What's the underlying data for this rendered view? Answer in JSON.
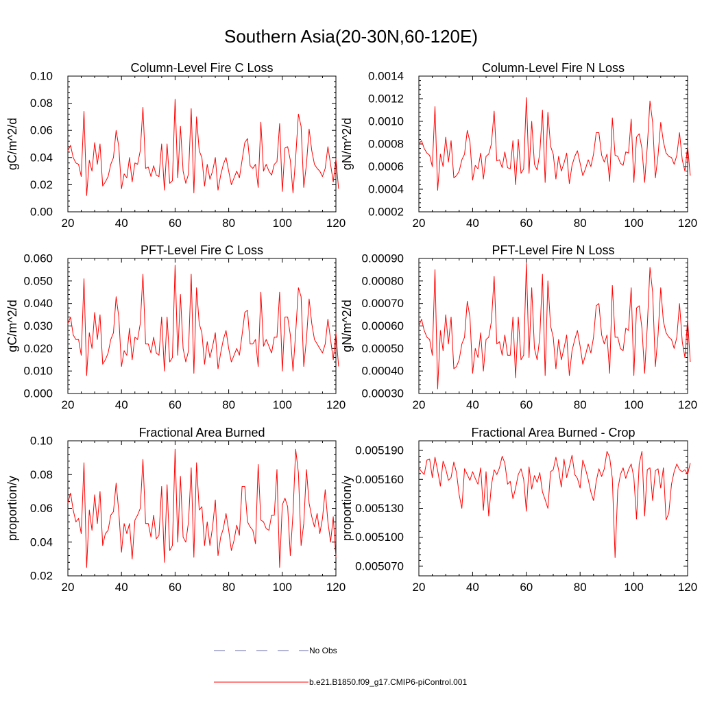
{
  "page": {
    "title": "Southern Asia(20-30N,60-120E)"
  },
  "colors": {
    "series_red": "#ff0000",
    "no_obs_blue": "#6a6aa8",
    "axis": "#000000",
    "background": "#ffffff"
  },
  "legend": {
    "entries": [
      {
        "label": "No Obs",
        "style": "dashed",
        "color": "#6a6aa8"
      },
      {
        "label": "b.e21.B1850.f09_g17.CMIP6-piControl.001",
        "style": "solid",
        "color": "#ff0000"
      }
    ]
  },
  "chart_data": [
    {
      "type": "line",
      "title": "Column-Level Fire C Loss",
      "ylabel": "gC/m^2/d",
      "xlim": [
        20,
        120
      ],
      "ylim": [
        0.0,
        0.1
      ],
      "xticks": [
        20,
        40,
        60,
        80,
        100,
        120
      ],
      "xtick_labels": [
        "20",
        "40",
        "60",
        "80",
        "100",
        "120"
      ],
      "yticks": [
        0.0,
        0.02,
        0.04,
        0.06,
        0.08,
        0.1
      ],
      "ytick_labels": [
        "0.00",
        "0.02",
        "0.04",
        "0.06",
        "0.08",
        "0.10"
      ],
      "x_start": 20,
      "series": [
        {
          "name": "b.e21.B1850.f09_g17.CMIP6-piControl.001",
          "values": [
            0.045,
            0.049,
            0.04,
            0.036,
            0.035,
            0.026,
            0.074,
            0.012,
            0.038,
            0.03,
            0.051,
            0.035,
            0.05,
            0.019,
            0.022,
            0.026,
            0.035,
            0.04,
            0.06,
            0.048,
            0.017,
            0.028,
            0.025,
            0.04,
            0.022,
            0.036,
            0.035,
            0.045,
            0.077,
            0.032,
            0.033,
            0.026,
            0.034,
            0.027,
            0.026,
            0.05,
            0.016,
            0.05,
            0.021,
            0.023,
            0.083,
            0.025,
            0.063,
            0.03,
            0.021,
            0.028,
            0.076,
            0.014,
            0.07,
            0.045,
            0.04,
            0.019,
            0.035,
            0.024,
            0.03,
            0.04,
            0.016,
            0.027,
            0.035,
            0.04,
            0.03,
            0.02,
            0.025,
            0.03,
            0.025,
            0.038,
            0.051,
            0.054,
            0.034,
            0.032,
            0.035,
            0.018,
            0.066,
            0.03,
            0.035,
            0.03,
            0.027,
            0.035,
            0.037,
            0.065,
            0.015,
            0.047,
            0.048,
            0.038,
            0.014,
            0.04,
            0.072,
            0.063,
            0.018,
            0.035,
            0.061,
            0.045,
            0.035,
            0.032,
            0.03,
            0.026,
            0.032,
            0.048,
            0.035,
            0.022,
            0.039,
            0.017
          ]
        }
      ]
    },
    {
      "type": "line",
      "title": "Column-Level Fire N Loss",
      "ylabel": "gN/m^2/d",
      "xlim": [
        20,
        120
      ],
      "ylim": [
        0.0002,
        0.0014
      ],
      "xticks": [
        20,
        40,
        60,
        80,
        100,
        120
      ],
      "xtick_labels": [
        "20",
        "40",
        "60",
        "80",
        "100",
        "120"
      ],
      "yticks": [
        0.0002,
        0.0004,
        0.0006,
        0.0008,
        0.001,
        0.0012,
        0.0014
      ],
      "ytick_labels": [
        "0.0002",
        "0.0004",
        "0.0006",
        "0.0008",
        "0.0010",
        "0.0012",
        "0.0014"
      ],
      "x_start": 20,
      "series": [
        {
          "name": "b.e21.B1850.f09_g17.CMIP6-piControl.001",
          "values": [
            0.0008,
            0.00083,
            0.00076,
            0.00072,
            0.0007,
            0.0006,
            0.00113,
            0.00039,
            0.00071,
            0.0006,
            0.00086,
            0.00064,
            0.00083,
            0.0005,
            0.00052,
            0.00056,
            0.00066,
            0.00071,
            0.00092,
            0.00082,
            0.00048,
            0.00061,
            0.00058,
            0.00072,
            0.00049,
            0.00069,
            0.00071,
            0.0008,
            0.00109,
            0.00065,
            0.00066,
            0.00059,
            0.00073,
            0.00059,
            0.00058,
            0.00083,
            0.00044,
            0.00084,
            0.00054,
            0.00058,
            0.00121,
            0.00054,
            0.001,
            0.00062,
            0.00057,
            0.00072,
            0.0011,
            0.00046,
            0.00108,
            0.00078,
            0.00071,
            0.00049,
            0.00069,
            0.00056,
            0.00063,
            0.00072,
            0.00045,
            0.00061,
            0.00069,
            0.00074,
            0.00063,
            0.00052,
            0.00058,
            0.00066,
            0.0006,
            0.00071,
            0.0009,
            0.0009,
            0.0007,
            0.00064,
            0.00071,
            0.00047,
            0.00103,
            0.0007,
            0.00069,
            0.00063,
            0.00061,
            0.00073,
            0.00072,
            0.00102,
            0.00046,
            0.00086,
            0.00089,
            0.00076,
            0.00046,
            0.00078,
            0.00118,
            0.00099,
            0.0005,
            0.0007,
            0.00099,
            0.00082,
            0.00072,
            0.00069,
            0.00068,
            0.00062,
            0.0007,
            0.0009,
            0.00066,
            0.00056,
            0.00078,
            0.00052
          ]
        }
      ]
    },
    {
      "type": "line",
      "title": "PFT-Level Fire C Loss",
      "ylabel": "gC/m^2/d",
      "xlim": [
        20,
        120
      ],
      "ylim": [
        0.0,
        0.06
      ],
      "xticks": [
        20,
        40,
        60,
        80,
        100,
        120
      ],
      "xtick_labels": [
        "20",
        "40",
        "60",
        "80",
        "100",
        "120"
      ],
      "yticks": [
        0.0,
        0.01,
        0.02,
        0.03,
        0.04,
        0.05,
        0.06
      ],
      "ytick_labels": [
        "0.000",
        "0.010",
        "0.020",
        "0.030",
        "0.040",
        "0.050",
        "0.060"
      ],
      "x_start": 20,
      "series": [
        {
          "name": "b.e21.B1850.f09_g17.CMIP6-piControl.001",
          "values": [
            0.031,
            0.034,
            0.026,
            0.024,
            0.024,
            0.017,
            0.051,
            0.008,
            0.027,
            0.02,
            0.036,
            0.024,
            0.035,
            0.013,
            0.015,
            0.018,
            0.024,
            0.027,
            0.043,
            0.034,
            0.012,
            0.019,
            0.017,
            0.029,
            0.015,
            0.025,
            0.024,
            0.031,
            0.053,
            0.022,
            0.022,
            0.018,
            0.025,
            0.018,
            0.017,
            0.034,
            0.01,
            0.034,
            0.014,
            0.016,
            0.057,
            0.017,
            0.044,
            0.02,
            0.014,
            0.019,
            0.053,
            0.009,
            0.047,
            0.031,
            0.027,
            0.013,
            0.023,
            0.016,
            0.021,
            0.027,
            0.011,
            0.018,
            0.024,
            0.028,
            0.02,
            0.014,
            0.017,
            0.02,
            0.017,
            0.026,
            0.036,
            0.037,
            0.022,
            0.022,
            0.024,
            0.012,
            0.045,
            0.021,
            0.024,
            0.021,
            0.018,
            0.025,
            0.025,
            0.045,
            0.01,
            0.034,
            0.034,
            0.026,
            0.01,
            0.027,
            0.047,
            0.043,
            0.012,
            0.024,
            0.042,
            0.031,
            0.024,
            0.022,
            0.02,
            0.018,
            0.022,
            0.033,
            0.024,
            0.015,
            0.027,
            0.012
          ]
        }
      ]
    },
    {
      "type": "line",
      "title": "PFT-Level Fire N Loss",
      "ylabel": "gN/m^2/d",
      "xlim": [
        20,
        120
      ],
      "ylim": [
        0.0003,
        0.0009
      ],
      "xticks": [
        20,
        40,
        60,
        80,
        100,
        120
      ],
      "xtick_labels": [
        "20",
        "40",
        "60",
        "80",
        "100",
        "120"
      ],
      "yticks": [
        0.0003,
        0.0004,
        0.0005,
        0.0006,
        0.0007,
        0.0008,
        0.0009
      ],
      "ytick_labels": [
        "0.00030",
        "0.00040",
        "0.00050",
        "0.00060",
        "0.00070",
        "0.00080",
        "0.00090"
      ],
      "x_start": 20,
      "series": [
        {
          "name": "b.e21.B1850.f09_g17.CMIP6-piControl.001",
          "values": [
            0.0006,
            0.00063,
            0.00058,
            0.00055,
            0.00054,
            0.00047,
            0.00085,
            0.00032,
            0.00058,
            0.00049,
            0.00065,
            0.00052,
            0.00064,
            0.00041,
            0.00042,
            0.00045,
            0.00052,
            0.00055,
            0.00071,
            0.00064,
            0.00039,
            0.0005,
            0.00046,
            0.00057,
            0.0004,
            0.00054,
            0.00055,
            0.00062,
            0.00082,
            0.00052,
            0.00053,
            0.00047,
            0.00056,
            0.00047,
            0.00047,
            0.00064,
            0.00037,
            0.00064,
            0.00045,
            0.00047,
            0.00088,
            0.00046,
            0.00077,
            0.0005,
            0.00045,
            0.00055,
            0.00083,
            0.00038,
            0.0008,
            0.0006,
            0.00055,
            0.00041,
            0.00054,
            0.00045,
            0.0005,
            0.00056,
            0.00038,
            0.00049,
            0.00054,
            0.00058,
            0.00051,
            0.00043,
            0.00047,
            0.00052,
            0.00048,
            0.00055,
            0.00069,
            0.0007,
            0.00056,
            0.00052,
            0.00056,
            0.00039,
            0.00078,
            0.00055,
            0.00055,
            0.0005,
            0.00049,
            0.00059,
            0.00058,
            0.00077,
            0.00038,
            0.00068,
            0.00069,
            0.00059,
            0.00039,
            0.0006,
            0.00086,
            0.00075,
            0.00042,
            0.00056,
            0.00077,
            0.00062,
            0.00057,
            0.00055,
            0.00054,
            0.0005,
            0.00055,
            0.0007,
            0.00053,
            0.00046,
            0.00063,
            0.00044
          ]
        }
      ]
    },
    {
      "type": "line",
      "title": "Fractional Area Burned",
      "ylabel": "proportion/y",
      "xlim": [
        20,
        120
      ],
      "ylim": [
        0.02,
        0.1
      ],
      "xticks": [
        20,
        40,
        60,
        80,
        100,
        120
      ],
      "xtick_labels": [
        "20",
        "40",
        "60",
        "80",
        "100",
        "120"
      ],
      "yticks": [
        0.02,
        0.04,
        0.06,
        0.08,
        0.1
      ],
      "ytick_labels": [
        "0.02",
        "0.04",
        "0.06",
        "0.08",
        "0.10"
      ],
      "x_start": 20,
      "series": [
        {
          "name": "b.e21.B1850.f09_g17.CMIP6-piControl.001",
          "values": [
            0.063,
            0.069,
            0.059,
            0.052,
            0.054,
            0.045,
            0.087,
            0.025,
            0.059,
            0.047,
            0.068,
            0.051,
            0.07,
            0.038,
            0.045,
            0.047,
            0.056,
            0.058,
            0.075,
            0.058,
            0.034,
            0.051,
            0.045,
            0.051,
            0.03,
            0.053,
            0.056,
            0.06,
            0.089,
            0.051,
            0.051,
            0.043,
            0.056,
            0.042,
            0.044,
            0.073,
            0.028,
            0.074,
            0.035,
            0.038,
            0.095,
            0.04,
            0.079,
            0.043,
            0.04,
            0.052,
            0.084,
            0.031,
            0.087,
            0.059,
            0.061,
            0.038,
            0.052,
            0.038,
            0.049,
            0.065,
            0.032,
            0.043,
            0.048,
            0.057,
            0.047,
            0.035,
            0.041,
            0.05,
            0.044,
            0.073,
            0.073,
            0.052,
            0.049,
            0.047,
            0.039,
            0.086,
            0.053,
            0.052,
            0.048,
            0.047,
            0.056,
            0.056,
            0.083,
            0.025,
            0.062,
            0.066,
            0.061,
            0.032,
            0.057,
            0.095,
            0.081,
            0.038,
            0.051,
            0.083,
            0.063,
            0.055,
            0.049,
            0.057,
            0.045,
            0.054,
            0.071,
            0.052,
            0.04,
            0.055,
            0.031
          ]
        }
      ]
    },
    {
      "type": "line",
      "title": "Fractional Area Burned - Crop",
      "ylabel": "proportion/y",
      "xlim": [
        20,
        120
      ],
      "ylim": [
        0.00506,
        0.0052
      ],
      "xticks": [
        20,
        40,
        60,
        80,
        100,
        120
      ],
      "xtick_labels": [
        "20",
        "40",
        "60",
        "80",
        "100",
        "120"
      ],
      "yticks": [
        0.00507,
        0.0051,
        0.00513,
        0.00516,
        0.00519
      ],
      "ytick_labels": [
        "0.005070",
        "0.005100",
        "0.005130",
        "0.005160",
        "0.005190"
      ],
      "x_start": 20,
      "series": [
        {
          "name": "b.e21.B1850.f09_g17.CMIP6-piControl.001",
          "values": [
            0.005172,
            0.005168,
            0.005165,
            0.00518,
            0.005181,
            0.005162,
            0.005183,
            0.005169,
            0.005153,
            0.005179,
            0.005171,
            0.005159,
            0.005162,
            0.005178,
            0.005167,
            0.005144,
            0.00513,
            0.005171,
            0.005165,
            0.005159,
            0.005168,
            0.005161,
            0.005155,
            0.005172,
            0.005128,
            0.005168,
            0.005122,
            0.005154,
            0.00517,
            0.005165,
            0.005172,
            0.005184,
            0.005177,
            0.005155,
            0.005158,
            0.00514,
            0.005151,
            0.005165,
            0.005171,
            0.00516,
            0.005127,
            0.005173,
            0.00515,
            0.005164,
            0.005157,
            0.005167,
            0.005147,
            0.005139,
            0.00513,
            0.005168,
            0.00517,
            0.005183,
            0.00517,
            0.005152,
            0.005181,
            0.005162,
            0.005173,
            0.005185,
            0.005165,
            0.005161,
            0.005151,
            0.00518,
            0.005171,
            0.00516,
            0.005147,
            0.005138,
            0.005158,
            0.005171,
            0.005163,
            0.005171,
            0.005189,
            0.005183,
            0.005161,
            0.005079,
            0.005149,
            0.005165,
            0.005172,
            0.005161,
            0.00517,
            0.005176,
            0.005162,
            0.005119,
            0.005176,
            0.005189,
            0.005122,
            0.00517,
            0.005172,
            0.005138,
            0.005169,
            0.005171,
            0.005151,
            0.005172,
            0.005118,
            0.005125,
            0.005155,
            0.005168,
            0.005176,
            0.00517,
            0.005168,
            0.00517,
            0.005165,
            0.005177
          ]
        }
      ]
    }
  ]
}
